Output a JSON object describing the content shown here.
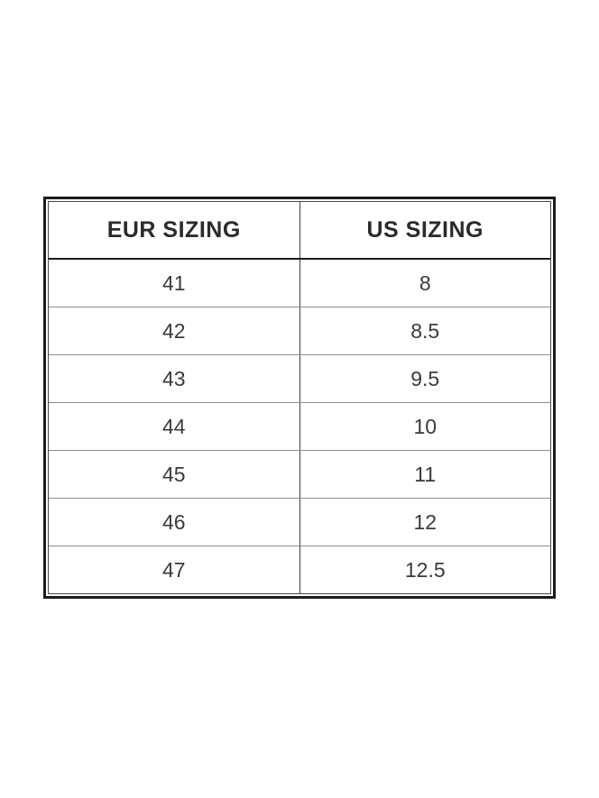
{
  "chart_data": {
    "type": "table",
    "columns": [
      "EUR SIZING",
      "US SIZING"
    ],
    "rows": [
      [
        "41",
        "8"
      ],
      [
        "42",
        "8.5"
      ],
      [
        "43",
        "9.5"
      ],
      [
        "44",
        "10"
      ],
      [
        "45",
        "11"
      ],
      [
        "46",
        "12"
      ],
      [
        "47",
        "12.5"
      ]
    ],
    "layout_hints": {
      "legend": "none",
      "grid": "full-borders",
      "header_style": "bold",
      "alignment": "center"
    }
  },
  "colors": {
    "background": "#ffffff",
    "outer_border": "#1b1b1b",
    "inner_border": "#4a4a4a",
    "header_rule": "#1b1b1b",
    "row_rule": "#8c8c8c",
    "column_rule": "#3c3c3c",
    "header_text": "#2b2b2b",
    "cell_text": "#3a3a3a"
  }
}
